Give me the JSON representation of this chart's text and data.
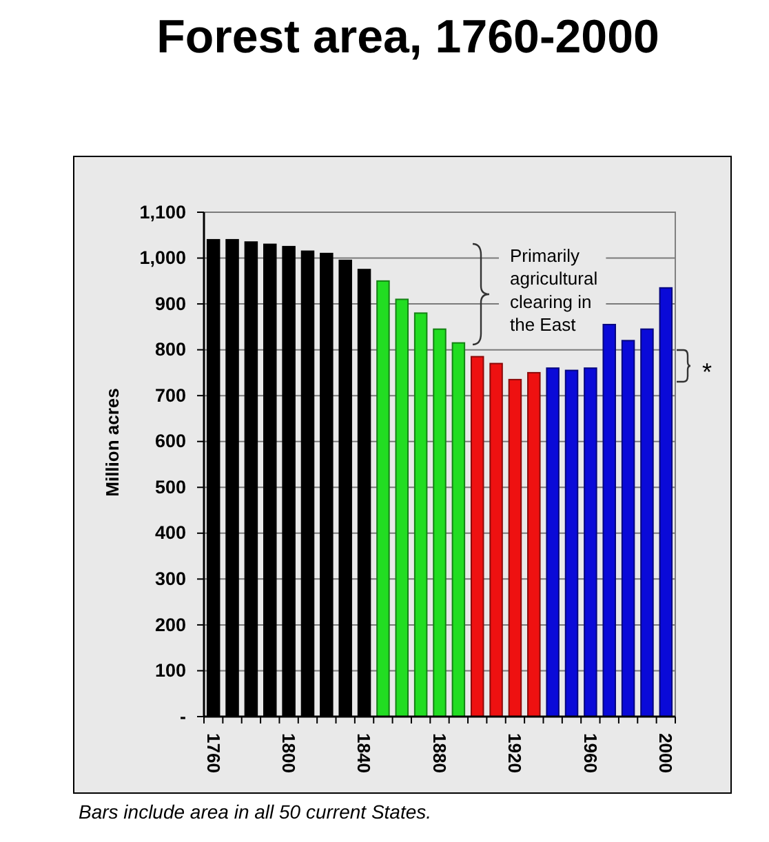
{
  "chart_data": {
    "type": "bar",
    "title": "Forest area, 1760-2000",
    "ylabel": "Million acres",
    "categories": [
      "1760",
      null,
      null,
      null,
      "1800",
      null,
      null,
      null,
      "1840",
      null,
      null,
      null,
      "1880",
      null,
      null,
      null,
      "1920",
      null,
      null,
      null,
      "1960",
      null,
      null,
      null,
      "2000"
    ],
    "values": [
      1040,
      1040,
      1035,
      1030,
      1025,
      1015,
      1010,
      995,
      975,
      950,
      910,
      880,
      845,
      815,
      785,
      770,
      735,
      750,
      760,
      755,
      760,
      855,
      820,
      845,
      935
    ],
    "colors": [
      "#000000",
      "#000000",
      "#000000",
      "#000000",
      "#000000",
      "#000000",
      "#000000",
      "#000000",
      "#000000",
      "#22dd22",
      "#22dd22",
      "#22dd22",
      "#22dd22",
      "#22dd22",
      "#ee1111",
      "#ee1111",
      "#ee1111",
      "#ee1111",
      "#0a0ad8",
      "#0a0ad8",
      "#0a0ad8",
      "#0a0ad8",
      "#0a0ad8",
      "#0a0ad8",
      "#0a0ad8"
    ],
    "ylim": [
      0,
      1100
    ],
    "yticks": [
      {
        "value": 0,
        "label": "-"
      },
      100,
      200,
      300,
      400,
      500,
      600,
      700,
      800,
      900,
      {
        "value": 1000,
        "label": "1,000"
      },
      {
        "value": 1100,
        "label": "1,100"
      }
    ],
    "grid": "y",
    "annotations": [
      "Primarily agricultural clearing in the East",
      "*",
      "Bars include area in all 50 current States."
    ]
  }
}
